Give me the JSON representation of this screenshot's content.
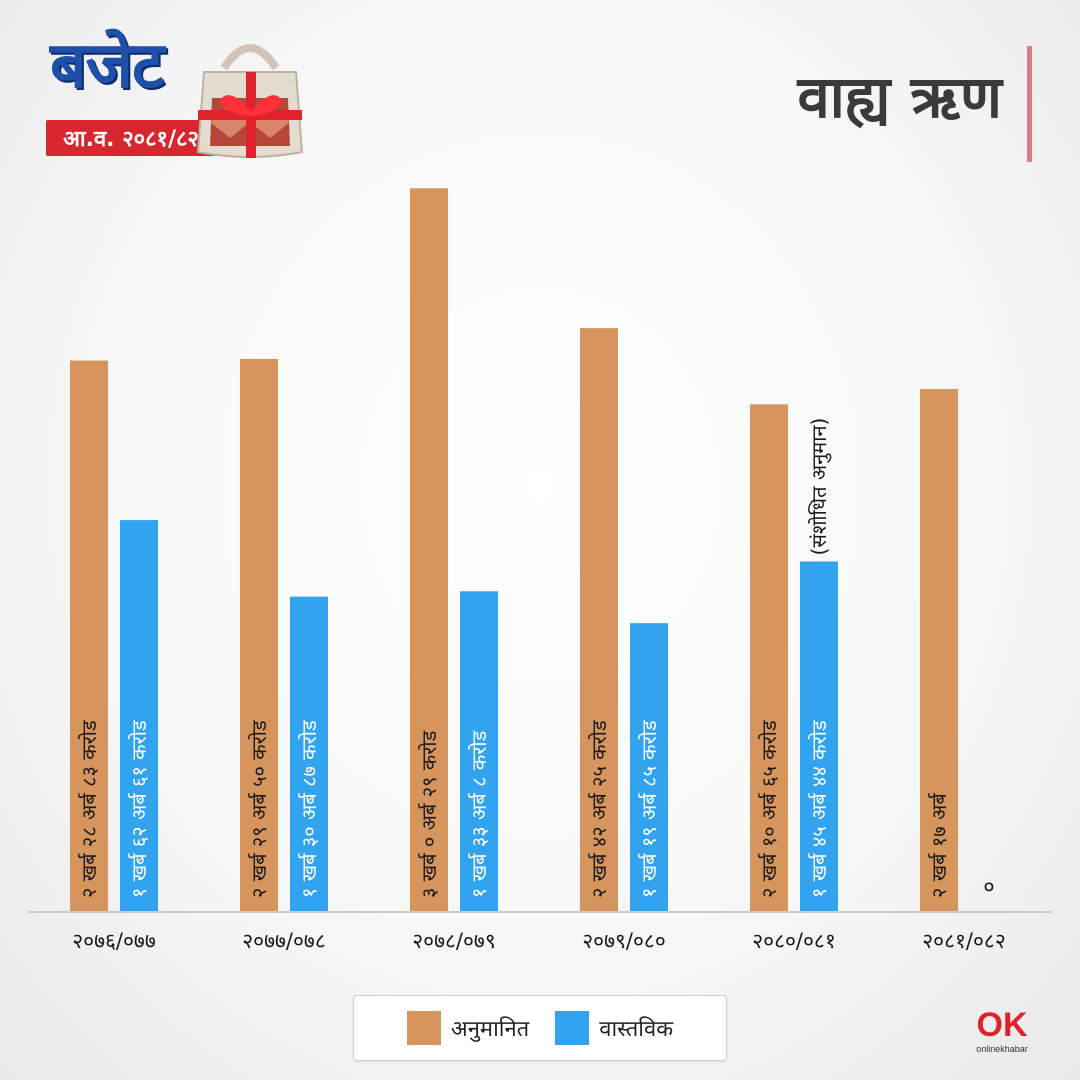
{
  "header": {
    "logo_word": "बजेट",
    "logo_year": "आ.व. २०८१/८२",
    "title": "वाह्य ऋण"
  },
  "brand": {
    "name": "onlinekhabar"
  },
  "colors": {
    "estimated": "#d6955d",
    "actual": "#32a3ef",
    "accent": "#d8262e",
    "logo_blue": "#1f4fa8"
  },
  "chart_data": {
    "type": "bar",
    "categories": [
      "२०७६/०७७",
      "२०७७/०७८",
      "२०७८/०७९",
      "२०७९/०८०",
      "२०८०/०८१",
      "२०८१/०८२"
    ],
    "series": [
      {
        "name": "अनुमानित",
        "values": [
          2.2883,
          2.295,
          3.0029,
          2.4225,
          2.1065,
          2.17
        ],
        "labels": [
          "२ खर्ब २८ अर्ब ८३ करोड",
          "२ खर्ब २९ अर्ब ५० करोड",
          "३ खर्ब ० अर्ब २९ करोड",
          "२ खर्ब ४२ अर्ब २५ करोड",
          "२ खर्ब १० अर्ब ६५ करोड",
          "२ खर्ब १७ अर्ब"
        ]
      },
      {
        "name": "वास्तविक",
        "values": [
          1.6261,
          1.3087,
          1.3308,
          1.1985,
          1.4544,
          0
        ],
        "labels": [
          "१ खर्ब ६२ अर्ब ६१ करोड",
          "१ खर्ब ३० अर्ब ८७ करोड",
          "१ खर्ब ३३ अर्ब ८ करोड",
          "१ खर्ब १९ अर्ब ८५ करोड",
          "१ खर्ब ४५ अर्ब ४४ करोड",
          "०"
        ]
      }
    ],
    "annotations": [
      {
        "category": "२०८०/०८१",
        "series": "वास्तविक",
        "text": "(संशोधित अनुमान)"
      }
    ],
    "ylim": [
      0,
      3.0
    ],
    "legend": "bottom-center",
    "grid": false
  }
}
